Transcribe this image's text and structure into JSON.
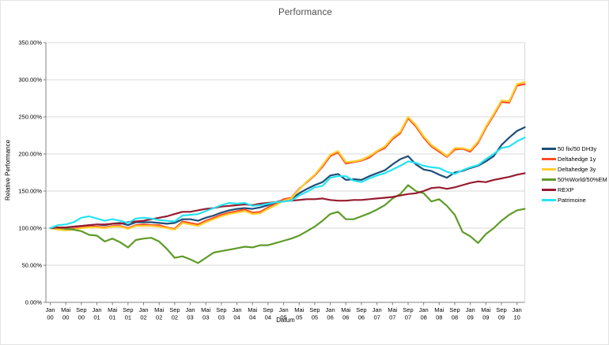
{
  "chart_data": {
    "type": "line",
    "title": "Performance",
    "xlabel": "Datum",
    "ylabel": "Relative Performance",
    "ylim": [
      0,
      350
    ],
    "y_ticks": [
      0,
      50,
      100,
      150,
      200,
      250,
      300,
      350
    ],
    "y_tick_suffix": ".00%",
    "grid": "horizontal",
    "legend_position": "right",
    "x_unit": "months since Jan 2000",
    "x_tick_interval_months": 4,
    "x_tick_labels": [
      [
        "Jan",
        "00"
      ],
      [
        "Mai",
        "00"
      ],
      [
        "Sep",
        "00"
      ],
      [
        "Jan",
        "01"
      ],
      [
        "Mai",
        "01"
      ],
      [
        "Sep",
        "01"
      ],
      [
        "Jan",
        "02"
      ],
      [
        "Mai",
        "02"
      ],
      [
        "Sep",
        "02"
      ],
      [
        "Jan",
        "03"
      ],
      [
        "Mai",
        "03"
      ],
      [
        "Sep",
        "03"
      ],
      [
        "Jan",
        "04"
      ],
      [
        "Mai",
        "04"
      ],
      [
        "Sep",
        "04"
      ],
      [
        "Jan",
        "05"
      ],
      [
        "Mai",
        "05"
      ],
      [
        "Sep",
        "05"
      ],
      [
        "Jan",
        "06"
      ],
      [
        "Mai",
        "06"
      ],
      [
        "Sep",
        "06"
      ],
      [
        "Jan",
        "07"
      ],
      [
        "Mai",
        "07"
      ],
      [
        "Sep",
        "07"
      ],
      [
        "Jan",
        "08"
      ],
      [
        "Mai",
        "08"
      ],
      [
        "Sep",
        "08"
      ],
      [
        "Jan",
        "09"
      ],
      [
        "Mai",
        "09"
      ],
      [
        "Sep",
        "09"
      ],
      [
        "Jan",
        "10"
      ]
    ],
    "series_month_step": 2,
    "series": [
      {
        "name": "50 fix/50 DH3y",
        "color": "#1F4E79",
        "values": [
          100,
          101,
          101,
          102,
          103,
          104,
          105,
          104,
          106,
          107,
          104,
          108,
          108,
          108,
          107,
          106,
          107,
          112,
          112,
          110,
          114,
          117,
          121,
          124,
          126,
          127,
          126,
          128,
          131,
          135,
          138,
          139,
          147,
          153,
          158,
          162,
          171,
          173,
          165,
          166,
          165,
          170,
          174,
          178,
          186,
          193,
          197,
          186,
          179,
          177,
          172,
          168,
          175,
          177,
          181,
          184,
          190,
          197,
          212,
          222,
          231,
          236
        ]
      },
      {
        "name": "Deltahedge 1y",
        "color": "#FF4B22",
        "values": [
          100,
          99,
          98,
          99,
          101,
          102,
          102,
          101,
          103,
          103,
          100,
          104,
          105,
          104,
          104,
          101,
          99,
          109,
          107,
          105,
          110,
          114,
          118,
          121,
          123,
          125,
          121,
          122,
          128,
          133,
          139,
          141,
          153,
          162,
          171,
          183,
          197,
          202,
          187,
          189,
          191,
          195,
          203,
          208,
          220,
          228,
          248,
          237,
          222,
          210,
          203,
          196,
          206,
          207,
          203,
          215,
          235,
          252,
          270,
          269,
          292,
          294
        ]
      },
      {
        "name": "Deltahedge 3y",
        "color": "#FFCF30",
        "values": [
          100,
          98,
          97,
          98,
          100,
          101,
          101,
          100,
          102,
          102,
          99,
          103,
          103,
          103,
          102,
          100,
          98,
          107,
          105,
          103,
          108,
          112,
          116,
          119,
          121,
          123,
          119,
          120,
          126,
          131,
          137,
          140,
          152,
          163,
          172,
          185,
          199,
          204,
          189,
          190,
          192,
          197,
          204,
          210,
          222,
          230,
          250,
          239,
          224,
          212,
          205,
          197,
          208,
          208,
          205,
          217,
          237,
          254,
          272,
          271,
          294,
          297
        ]
      },
      {
        "name": "50%World/50%EM",
        "color": "#5F9B28",
        "values": [
          100,
          101,
          99,
          98,
          96,
          91,
          90,
          82,
          86,
          81,
          74,
          84,
          86,
          87,
          82,
          72,
          60,
          62,
          58,
          53,
          60,
          67,
          69,
          71,
          73,
          75,
          74,
          77,
          77,
          80,
          83,
          86,
          90,
          96,
          102,
          110,
          119,
          122,
          112,
          112,
          116,
          120,
          125,
          131,
          140,
          146,
          158,
          150,
          147,
          136,
          139,
          130,
          118,
          95,
          89,
          80,
          92,
          100,
          110,
          118,
          124,
          126
        ]
      },
      {
        "name": "REXP",
        "color": "#971B2F",
        "values": [
          100,
          101,
          101,
          102,
          103,
          104,
          105,
          105,
          106,
          106,
          108,
          109,
          110,
          112,
          114,
          116,
          119,
          122,
          122,
          124,
          126,
          127,
          129,
          130,
          131,
          132,
          131,
          133,
          134,
          135,
          136,
          137,
          138,
          139,
          139,
          140,
          138,
          137,
          137,
          138,
          138,
          139,
          140,
          141,
          142,
          144,
          146,
          147,
          150,
          154,
          155,
          153,
          155,
          158,
          161,
          163,
          162,
          165,
          167,
          169,
          172,
          174
        ]
      },
      {
        "name": "Patrimoine",
        "color": "#25E3F2",
        "values": [
          100,
          104,
          105,
          108,
          114,
          116,
          113,
          110,
          112,
          110,
          107,
          113,
          114,
          113,
          111,
          110,
          109,
          117,
          118,
          119,
          123,
          127,
          131,
          134,
          133,
          134,
          130,
          131,
          133,
          135,
          136,
          137,
          144,
          149,
          155,
          157,
          168,
          170,
          170,
          164,
          162,
          167,
          171,
          174,
          179,
          184,
          190,
          188,
          184,
          182,
          181,
          176,
          173,
          178,
          182,
          185,
          193,
          200,
          208,
          210,
          217,
          222
        ]
      }
    ]
  }
}
